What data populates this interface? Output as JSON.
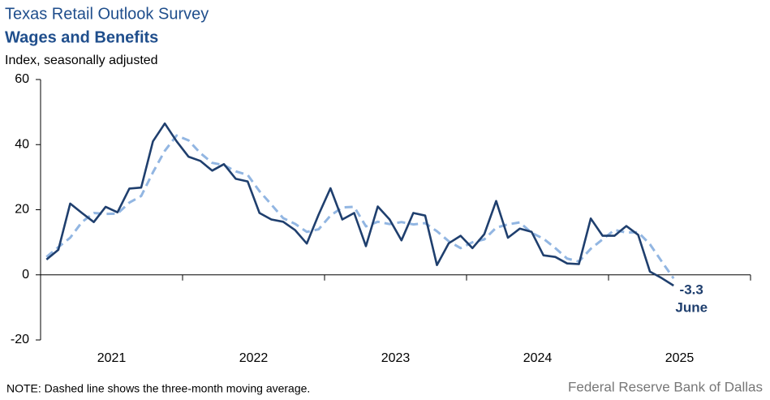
{
  "chart_data": {
    "type": "line",
    "title": "Texas Retail Outlook Survey",
    "subtitle": "Wages and Benefits",
    "y_label": "Index, seasonally adjusted",
    "note": "NOTE: Dashed line shows the three-month  moving average.",
    "source": "Federal Reserve Bank of Dallas",
    "x_labels": [
      "2021",
      "2022",
      "2023",
      "2024",
      "2025"
    ],
    "ylim": [
      -20,
      60
    ],
    "yticks": [
      -20,
      0,
      20,
      40,
      60
    ],
    "annotation": "June",
    "series": [
      {
        "color": "#1f3f6e",
        "dash": false,
        "values": [
          4.7,
          7.7,
          21.9,
          19,
          16.2,
          20.9,
          19.2,
          26.5,
          26.8,
          41,
          46.5,
          41,
          36.3,
          35,
          32,
          34,
          29.5,
          28.7,
          19,
          17,
          16.3,
          13.8,
          9.6,
          18.5,
          26.6,
          17,
          19,
          8.8,
          21,
          17,
          10.6,
          19,
          18.2,
          3,
          9.7,
          12,
          8.2,
          12.5,
          22.7,
          11.4,
          14.2,
          13.2,
          6,
          5.5,
          3.5,
          3.3,
          17.3,
          12,
          12,
          15,
          12.3,
          1,
          -1,
          -3.3
        ]
      },
      {
        "color": "#92b6e2",
        "dash": true,
        "values": [
          5.5,
          8.5,
          11.4,
          16.2,
          19,
          18.7,
          18.8,
          22.2,
          24.2,
          31.5,
          38.1,
          42.8,
          41.3,
          37.4,
          34.4,
          33.7,
          31.8,
          30.7,
          25.7,
          21.6,
          17.4,
          15.7,
          13.2,
          14,
          18.2,
          20.7,
          20.9,
          14.9,
          16.3,
          15.6,
          16.2,
          15.5,
          15.9,
          13.4,
          10.3,
          8.2,
          10,
          10.9,
          14.5,
          15.5,
          16.1,
          12.9,
          11.1,
          8.2,
          5,
          4.1,
          8,
          10.9,
          13.8,
          13,
          13.1,
          9.4,
          4.1,
          -1.1
        ]
      }
    ]
  }
}
